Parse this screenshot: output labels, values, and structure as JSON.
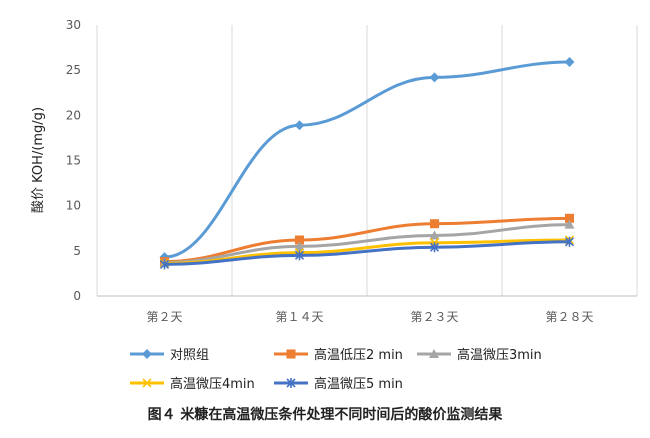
{
  "caption": "图４ 米糠在高温微压条件处理不同时间后的酸价监测结果",
  "chart_data": {
    "type": "line",
    "categories": [
      "第２天",
      "第１４天",
      "第２３天",
      "第２８天"
    ],
    "ylabel": "酸价 KOH/(mg/g)",
    "xlabel": "",
    "ylim": [
      0,
      30
    ],
    "yticks": [
      0,
      5,
      10,
      15,
      20,
      25,
      30
    ],
    "grid": "vertical",
    "legend_position": "bottom",
    "series": [
      {
        "name": "对照组",
        "values": [
          4.3,
          18.9,
          24.2,
          25.9
        ],
        "color": "#5b9bd5",
        "marker": "diamond"
      },
      {
        "name": "高温低压2 min",
        "values": [
          3.8,
          6.2,
          8.0,
          8.6
        ],
        "color": "#ed7d31",
        "marker": "square"
      },
      {
        "name": "高温微压3min",
        "values": [
          3.7,
          5.5,
          6.7,
          7.9
        ],
        "color": "#a5a5a5",
        "marker": "triangle"
      },
      {
        "name": "高温微压4min",
        "values": [
          3.6,
          4.8,
          5.9,
          6.2
        ],
        "color": "#ffc000",
        "marker": "x"
      },
      {
        "name": "高温微压5 min",
        "values": [
          3.5,
          4.5,
          5.4,
          6.0
        ],
        "color": "#4472c4",
        "marker": "star"
      }
    ]
  }
}
